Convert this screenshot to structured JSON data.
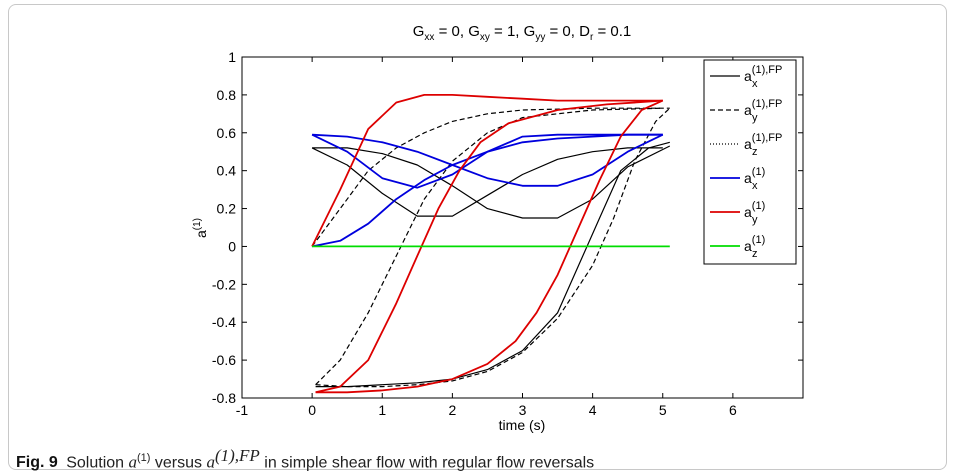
{
  "figure": {
    "label": "Fig. 9",
    "caption_pre": "Solution ",
    "caption_a": "a",
    "caption_sup1": "(1)",
    "caption_mid": " versus ",
    "caption_sup2": "(1),FP",
    "caption_post": " in simple shear flow with regular flow reversals"
  },
  "colors": {
    "black": "#000000",
    "blue": "#0000dd",
    "red": "#dd0000",
    "green": "#00dd00"
  },
  "chart_data": {
    "type": "line",
    "title": {
      "G": "G",
      "xx": "xx",
      "t1": " = 0, ",
      "xy": "xy",
      "t2": " = 1, ",
      "yy": "yy",
      "t3": " = 0, D",
      "r": "r",
      "t4": " = 0.1"
    },
    "xlabel": "time (s)",
    "ylabel": {
      "base": "a",
      "sup": "(1)"
    },
    "xlim": [
      -1,
      7
    ],
    "ylim": [
      -0.8,
      1
    ],
    "xticks": [
      -1,
      0,
      1,
      2,
      3,
      4,
      5,
      6
    ],
    "yticks": [
      -0.8,
      -0.6,
      -0.4,
      -0.2,
      0,
      0.2,
      0.4,
      0.6,
      0.8,
      1
    ],
    "xtick_labels": [
      "-1",
      "0",
      "1",
      "2",
      "3",
      "4",
      "5",
      "6"
    ],
    "ytick_labels": [
      "-0.8",
      "-0.6",
      "-0.4",
      "-0.2",
      "0",
      "0.2",
      "0.4",
      "0.6",
      "0.8",
      "1"
    ],
    "legend_position": "top-right",
    "legend": [
      {
        "base": "a",
        "sub": "x",
        "sup": "(1),FP",
        "color": "black",
        "dash": "solid"
      },
      {
        "base": "a",
        "sub": "y",
        "sup": "(1),FP",
        "color": "black",
        "dash": "dashed"
      },
      {
        "base": "a",
        "sub": "z",
        "sup": "(1),FP",
        "color": "black",
        "dash": "dotted"
      },
      {
        "base": "a",
        "sub": "x",
        "sup": "(1)",
        "color": "blue",
        "dash": "solid"
      },
      {
        "base": "a",
        "sub": "y",
        "sup": "(1)",
        "color": "red",
        "dash": "solid"
      },
      {
        "base": "a",
        "sub": "z",
        "sup": "(1)",
        "color": "green",
        "dash": "solid"
      }
    ],
    "series": [
      {
        "name": "a_x^(1),FP",
        "color": "black",
        "dash": "solid",
        "x": [
          0,
          0.5,
          1.0,
          1.5,
          2.0,
          2.5,
          3.0,
          3.5,
          4.0,
          4.5,
          5.0
        ],
        "y": [
          0.52,
          0.43,
          0.28,
          0.16,
          0.16,
          0.27,
          0.38,
          0.46,
          0.5,
          0.52,
          0.52
        ]
      },
      {
        "name": "a_x^(1),FP",
        "color": "black",
        "dash": "solid",
        "x": [
          0,
          0.5,
          1.0,
          1.5,
          2.0,
          2.5,
          3.0,
          3.5,
          4.0,
          4.5,
          5.1
        ],
        "y": [
          0.52,
          0.52,
          0.49,
          0.43,
          0.32,
          0.2,
          0.15,
          0.15,
          0.25,
          0.42,
          0.53
        ]
      },
      {
        "name": "a_x^(1),FP",
        "color": "black",
        "dash": "solid",
        "x": [
          0.05,
          0.5,
          1.0,
          1.5,
          2.0,
          2.5,
          3.0,
          3.5,
          3.8,
          4.1,
          4.4,
          4.8,
          5.1
        ],
        "y": [
          -0.74,
          -0.74,
          -0.73,
          -0.72,
          -0.7,
          -0.65,
          -0.55,
          -0.35,
          -0.1,
          0.15,
          0.4,
          0.52,
          0.55
        ]
      },
      {
        "name": "a_y^(1),FP",
        "color": "black",
        "dash": "dashed",
        "x": [
          0,
          0.4,
          0.8,
          1.2,
          1.6,
          2.0,
          2.5,
          3.0,
          4.0,
          5.1
        ],
        "y": [
          0,
          0.2,
          0.4,
          0.52,
          0.6,
          0.66,
          0.7,
          0.72,
          0.73,
          0.73
        ]
      },
      {
        "name": "a_y^(1),FP",
        "color": "black",
        "dash": "dashed",
        "x": [
          0.05,
          0.5,
          1.0,
          1.5,
          2.0,
          2.5,
          3.0,
          3.5,
          4.0,
          4.3,
          4.6,
          4.9,
          5.1
        ],
        "y": [
          -0.73,
          -0.74,
          -0.74,
          -0.73,
          -0.71,
          -0.66,
          -0.56,
          -0.38,
          -0.1,
          0.15,
          0.45,
          0.66,
          0.73
        ]
      },
      {
        "name": "a_y^(1),FP",
        "color": "black",
        "dash": "dashed",
        "x": [
          0.05,
          0.4,
          0.8,
          1.2,
          1.6,
          2.0,
          2.5,
          3.0,
          4.0,
          5.0
        ],
        "y": [
          -0.73,
          -0.6,
          -0.35,
          -0.05,
          0.25,
          0.45,
          0.6,
          0.68,
          0.72,
          0.73
        ]
      },
      {
        "name": "a_x^(1)",
        "color": "blue",
        "dash": "solid",
        "x": [
          0,
          0.5,
          1.0,
          1.5,
          2.0,
          2.5,
          3.0,
          3.5,
          4.0,
          4.5,
          5.0
        ],
        "y": [
          0.59,
          0.58,
          0.55,
          0.5,
          0.43,
          0.36,
          0.32,
          0.32,
          0.38,
          0.5,
          0.59
        ]
      },
      {
        "name": "a_x^(1)",
        "color": "blue",
        "dash": "solid",
        "x": [
          0,
          0.5,
          1.0,
          1.5,
          2.0,
          2.5,
          3.0,
          3.5,
          4.0,
          4.5,
          5.0
        ],
        "y": [
          0.59,
          0.5,
          0.36,
          0.31,
          0.38,
          0.5,
          0.58,
          0.59,
          0.59,
          0.59,
          0.59
        ]
      },
      {
        "name": "a_x^(1)",
        "color": "blue",
        "dash": "solid",
        "x": [
          0,
          0.4,
          0.8,
          1.2,
          1.6,
          2.0,
          2.5,
          3.0,
          3.5,
          4.0,
          4.5,
          5.0
        ],
        "y": [
          0,
          0.03,
          0.12,
          0.25,
          0.35,
          0.43,
          0.5,
          0.55,
          0.57,
          0.58,
          0.59,
          0.59
        ]
      },
      {
        "name": "a_y^(1)",
        "color": "red",
        "dash": "solid",
        "x": [
          0,
          0.4,
          0.8,
          1.2,
          1.6,
          2.0,
          2.5,
          3.0,
          3.5,
          4.0,
          4.5,
          5.0
        ],
        "y": [
          0,
          0.3,
          0.62,
          0.76,
          0.8,
          0.8,
          0.79,
          0.78,
          0.77,
          0.77,
          0.77,
          0.77
        ]
      },
      {
        "name": "a_y^(1)",
        "color": "red",
        "dash": "solid",
        "x": [
          0.05,
          0.4,
          0.8,
          1.2,
          1.5,
          1.8,
          2.1,
          2.4,
          2.8,
          3.5,
          4.2,
          5.0
        ],
        "y": [
          -0.77,
          -0.74,
          -0.6,
          -0.3,
          -0.05,
          0.2,
          0.4,
          0.55,
          0.65,
          0.72,
          0.75,
          0.77
        ]
      },
      {
        "name": "a_y^(1)",
        "color": "red",
        "dash": "solid",
        "x": [
          0.05,
          0.5,
          1.0,
          1.5,
          2.0,
          2.5,
          2.9,
          3.2,
          3.5,
          3.8,
          4.1,
          4.4,
          4.7,
          5.0
        ],
        "y": [
          -0.77,
          -0.77,
          -0.76,
          -0.74,
          -0.7,
          -0.62,
          -0.5,
          -0.35,
          -0.15,
          0.1,
          0.35,
          0.58,
          0.72,
          0.77
        ]
      },
      {
        "name": "a_z^(1)",
        "color": "green",
        "dash": "solid",
        "x": [
          0,
          5.1
        ],
        "y": [
          0,
          0
        ]
      }
    ]
  }
}
